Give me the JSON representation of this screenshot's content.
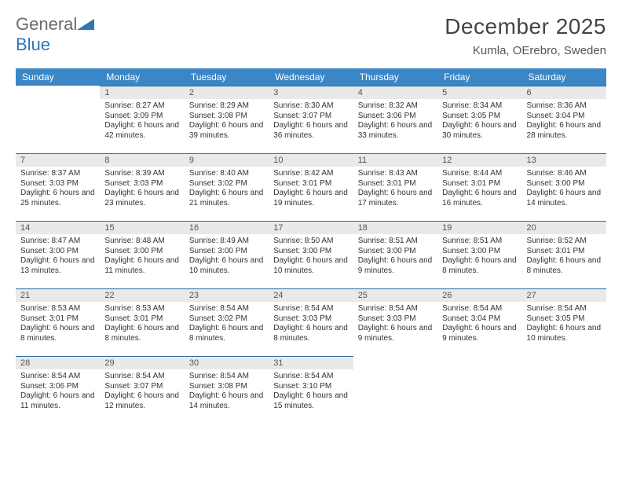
{
  "logo": {
    "word1": "General",
    "word2": "Blue"
  },
  "title": "December 2025",
  "location": "Kumla, OErebro, Sweden",
  "colors": {
    "header_bg": "#3b86c6",
    "header_text": "#ffffff",
    "daybar_bg": "#e9e9e9",
    "daybar_border": "#2e6ea5",
    "body_bg": "#ffffff",
    "text": "#333333",
    "logo_gray": "#6b6b6b",
    "logo_blue": "#2e77b6"
  },
  "weekdays": [
    "Sunday",
    "Monday",
    "Tuesday",
    "Wednesday",
    "Thursday",
    "Friday",
    "Saturday"
  ],
  "weeks": [
    [
      {
        "n": "",
        "sr": "",
        "ss": "",
        "dl": ""
      },
      {
        "n": "1",
        "sr": "Sunrise: 8:27 AM",
        "ss": "Sunset: 3:09 PM",
        "dl": "Daylight: 6 hours and 42 minutes."
      },
      {
        "n": "2",
        "sr": "Sunrise: 8:29 AM",
        "ss": "Sunset: 3:08 PM",
        "dl": "Daylight: 6 hours and 39 minutes."
      },
      {
        "n": "3",
        "sr": "Sunrise: 8:30 AM",
        "ss": "Sunset: 3:07 PM",
        "dl": "Daylight: 6 hours and 36 minutes."
      },
      {
        "n": "4",
        "sr": "Sunrise: 8:32 AM",
        "ss": "Sunset: 3:06 PM",
        "dl": "Daylight: 6 hours and 33 minutes."
      },
      {
        "n": "5",
        "sr": "Sunrise: 8:34 AM",
        "ss": "Sunset: 3:05 PM",
        "dl": "Daylight: 6 hours and 30 minutes."
      },
      {
        "n": "6",
        "sr": "Sunrise: 8:36 AM",
        "ss": "Sunset: 3:04 PM",
        "dl": "Daylight: 6 hours and 28 minutes."
      }
    ],
    [
      {
        "n": "7",
        "sr": "Sunrise: 8:37 AM",
        "ss": "Sunset: 3:03 PM",
        "dl": "Daylight: 6 hours and 25 minutes."
      },
      {
        "n": "8",
        "sr": "Sunrise: 8:39 AM",
        "ss": "Sunset: 3:03 PM",
        "dl": "Daylight: 6 hours and 23 minutes."
      },
      {
        "n": "9",
        "sr": "Sunrise: 8:40 AM",
        "ss": "Sunset: 3:02 PM",
        "dl": "Daylight: 6 hours and 21 minutes."
      },
      {
        "n": "10",
        "sr": "Sunrise: 8:42 AM",
        "ss": "Sunset: 3:01 PM",
        "dl": "Daylight: 6 hours and 19 minutes."
      },
      {
        "n": "11",
        "sr": "Sunrise: 8:43 AM",
        "ss": "Sunset: 3:01 PM",
        "dl": "Daylight: 6 hours and 17 minutes."
      },
      {
        "n": "12",
        "sr": "Sunrise: 8:44 AM",
        "ss": "Sunset: 3:01 PM",
        "dl": "Daylight: 6 hours and 16 minutes."
      },
      {
        "n": "13",
        "sr": "Sunrise: 8:46 AM",
        "ss": "Sunset: 3:00 PM",
        "dl": "Daylight: 6 hours and 14 minutes."
      }
    ],
    [
      {
        "n": "14",
        "sr": "Sunrise: 8:47 AM",
        "ss": "Sunset: 3:00 PM",
        "dl": "Daylight: 6 hours and 13 minutes."
      },
      {
        "n": "15",
        "sr": "Sunrise: 8:48 AM",
        "ss": "Sunset: 3:00 PM",
        "dl": "Daylight: 6 hours and 11 minutes."
      },
      {
        "n": "16",
        "sr": "Sunrise: 8:49 AM",
        "ss": "Sunset: 3:00 PM",
        "dl": "Daylight: 6 hours and 10 minutes."
      },
      {
        "n": "17",
        "sr": "Sunrise: 8:50 AM",
        "ss": "Sunset: 3:00 PM",
        "dl": "Daylight: 6 hours and 10 minutes."
      },
      {
        "n": "18",
        "sr": "Sunrise: 8:51 AM",
        "ss": "Sunset: 3:00 PM",
        "dl": "Daylight: 6 hours and 9 minutes."
      },
      {
        "n": "19",
        "sr": "Sunrise: 8:51 AM",
        "ss": "Sunset: 3:00 PM",
        "dl": "Daylight: 6 hours and 8 minutes."
      },
      {
        "n": "20",
        "sr": "Sunrise: 8:52 AM",
        "ss": "Sunset: 3:01 PM",
        "dl": "Daylight: 6 hours and 8 minutes."
      }
    ],
    [
      {
        "n": "21",
        "sr": "Sunrise: 8:53 AM",
        "ss": "Sunset: 3:01 PM",
        "dl": "Daylight: 6 hours and 8 minutes."
      },
      {
        "n": "22",
        "sr": "Sunrise: 8:53 AM",
        "ss": "Sunset: 3:01 PM",
        "dl": "Daylight: 6 hours and 8 minutes."
      },
      {
        "n": "23",
        "sr": "Sunrise: 8:54 AM",
        "ss": "Sunset: 3:02 PM",
        "dl": "Daylight: 6 hours and 8 minutes."
      },
      {
        "n": "24",
        "sr": "Sunrise: 8:54 AM",
        "ss": "Sunset: 3:03 PM",
        "dl": "Daylight: 6 hours and 8 minutes."
      },
      {
        "n": "25",
        "sr": "Sunrise: 8:54 AM",
        "ss": "Sunset: 3:03 PM",
        "dl": "Daylight: 6 hours and 9 minutes."
      },
      {
        "n": "26",
        "sr": "Sunrise: 8:54 AM",
        "ss": "Sunset: 3:04 PM",
        "dl": "Daylight: 6 hours and 9 minutes."
      },
      {
        "n": "27",
        "sr": "Sunrise: 8:54 AM",
        "ss": "Sunset: 3:05 PM",
        "dl": "Daylight: 6 hours and 10 minutes."
      }
    ],
    [
      {
        "n": "28",
        "sr": "Sunrise: 8:54 AM",
        "ss": "Sunset: 3:06 PM",
        "dl": "Daylight: 6 hours and 11 minutes."
      },
      {
        "n": "29",
        "sr": "Sunrise: 8:54 AM",
        "ss": "Sunset: 3:07 PM",
        "dl": "Daylight: 6 hours and 12 minutes."
      },
      {
        "n": "30",
        "sr": "Sunrise: 8:54 AM",
        "ss": "Sunset: 3:08 PM",
        "dl": "Daylight: 6 hours and 14 minutes."
      },
      {
        "n": "31",
        "sr": "Sunrise: 8:54 AM",
        "ss": "Sunset: 3:10 PM",
        "dl": "Daylight: 6 hours and 15 minutes."
      },
      {
        "n": "",
        "sr": "",
        "ss": "",
        "dl": ""
      },
      {
        "n": "",
        "sr": "",
        "ss": "",
        "dl": ""
      },
      {
        "n": "",
        "sr": "",
        "ss": "",
        "dl": ""
      }
    ]
  ]
}
